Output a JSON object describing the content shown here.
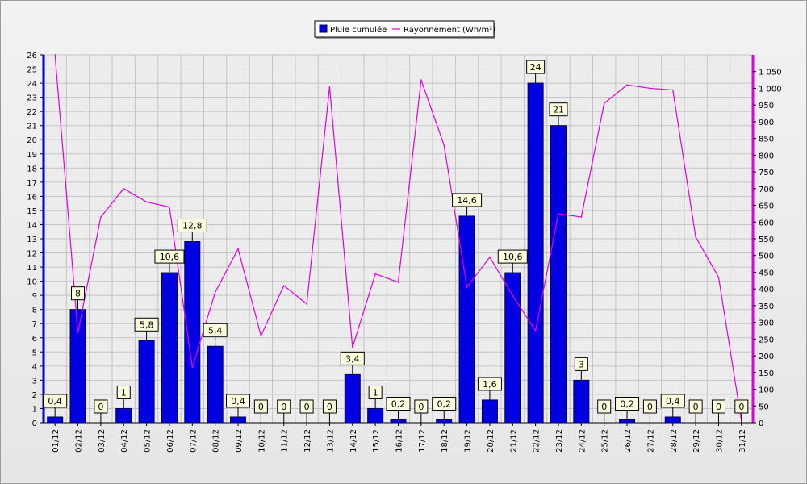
{
  "chart_data": {
    "type": "bar+line",
    "categories": [
      "01/12",
      "02/12",
      "03/12",
      "04/12",
      "05/12",
      "06/12",
      "07/12",
      "08/12",
      "09/12",
      "10/12",
      "11/12",
      "12/12",
      "13/12",
      "14/12",
      "15/12",
      "16/12",
      "17/12",
      "18/12",
      "19/12",
      "20/12",
      "21/12",
      "22/12",
      "23/12",
      "24/12",
      "25/12",
      "26/12",
      "27/12",
      "28/12",
      "29/12",
      "30/12",
      "31/12"
    ],
    "series": [
      {
        "name": "Pluie cumulée",
        "type": "bar",
        "axis": "left",
        "color": "#0000e0",
        "values": [
          0.4,
          8,
          0,
          1,
          5.8,
          10.6,
          12.8,
          5.4,
          0.4,
          0,
          0,
          0,
          0,
          3.4,
          1,
          0.2,
          0,
          0.2,
          14.6,
          1.6,
          10.6,
          24,
          21,
          3,
          0,
          0.2,
          0,
          0.4,
          0,
          0,
          0
        ],
        "labels": [
          "0,4",
          "8",
          "0",
          "1",
          "5,8",
          "10,6",
          "12,8",
          "5,4",
          "0,4",
          "0",
          "0",
          "0",
          "0",
          "3,4",
          "1",
          "0,2",
          "0",
          "0,2",
          "14,6",
          "1,6",
          "10,6",
          "24",
          "21",
          "3",
          "0",
          "0,2",
          "0",
          "0,4",
          "0",
          "0",
          "0"
        ]
      },
      {
        "name": "Rayonnement (Wh/m²)",
        "type": "line",
        "axis": "right",
        "color": "#e000e0",
        "values": [
          1100,
          270,
          615,
          700,
          660,
          645,
          165,
          390,
          520,
          260,
          410,
          355,
          1005,
          225,
          445,
          420,
          1025,
          830,
          405,
          495,
          380,
          275,
          625,
          615,
          955,
          1010,
          1000,
          995,
          555,
          435,
          5
        ]
      }
    ],
    "left_axis": {
      "min": 0,
      "max": 26,
      "step": 1,
      "ticks": [
        "0",
        "1",
        "2",
        "3",
        "4",
        "5",
        "6",
        "7",
        "8",
        "9",
        "10",
        "11",
        "12",
        "13",
        "14",
        "15",
        "16",
        "17",
        "18",
        "19",
        "20",
        "21",
        "22",
        "23",
        "24",
        "25",
        "26"
      ]
    },
    "right_axis": {
      "min": 0,
      "max": 1100,
      "step": 50,
      "ticks": [
        "0",
        "50",
        "100",
        "150",
        "200",
        "250",
        "300",
        "350",
        "400",
        "450",
        "500",
        "550",
        "600",
        "650",
        "700",
        "750",
        "800",
        "850",
        "900",
        "950",
        "1 000",
        "1 050"
      ]
    },
    "grid": true,
    "legend": "top-center"
  }
}
